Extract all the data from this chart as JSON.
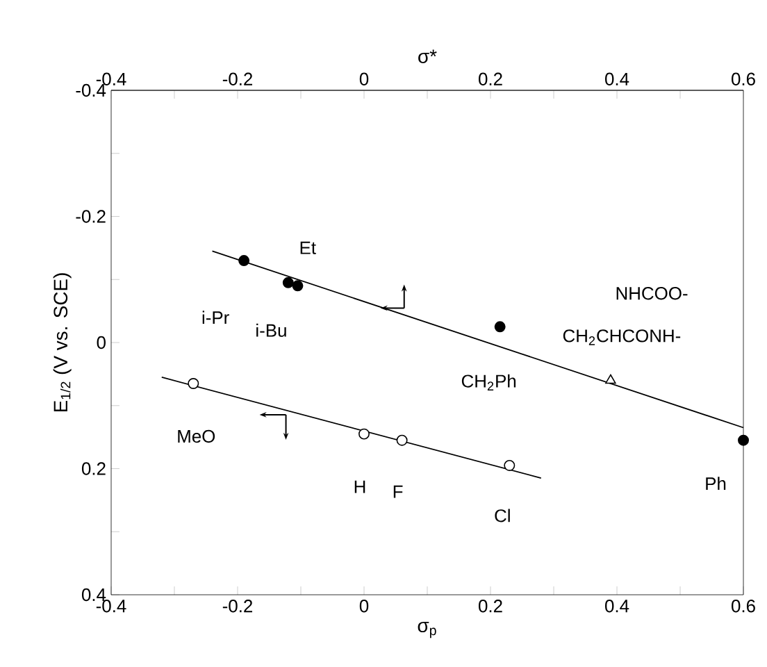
{
  "chart_data": {
    "type": "scatter",
    "xlabel": "σ$_{p}$",
    "x2label": "σ*",
    "ylabel": "E$_{1/2}$   (V vs. SCE)",
    "xlim": [
      -0.4,
      0.6
    ],
    "x2lim": [
      -0.4,
      0.6
    ],
    "ylim": [
      0.4,
      -0.4
    ],
    "xticks": [
      -0.4,
      {
        "value": -0.3,
        "label": null
      },
      -0.2,
      {
        "value": -0.1,
        "label": null
      },
      0,
      {
        "value": 0.1,
        "label": null
      },
      0.2,
      {
        "value": 0.3,
        "label": null
      },
      0.4,
      {
        "value": 0.5,
        "label": null
      },
      0.6
    ],
    "x2ticks": [
      -0.4,
      {
        "value": -0.3,
        "label": null
      },
      -0.2,
      {
        "value": -0.1,
        "label": null
      },
      0,
      {
        "value": 0.1,
        "label": null
      },
      0.2,
      {
        "value": 0.3,
        "label": null
      },
      0.4,
      {
        "value": 0.5,
        "label": null
      },
      0.6
    ],
    "yticks": [
      -0.4,
      {
        "value": -0.3,
        "label": null
      },
      -0.2,
      {
        "value": -0.1,
        "label": null
      },
      0,
      {
        "value": 0.1,
        "label": null
      },
      0.2,
      {
        "value": 0.3,
        "label": null
      },
      0.4
    ],
    "series": [
      {
        "axis": "x2",
        "marker": "circle",
        "color": "#000000",
        "x": [
          -0.19,
          -0.12,
          -0.105,
          0.215,
          0.6
        ],
        "values": [
          -0.13,
          -0.095,
          -0.09,
          -0.025,
          0.155
        ]
      },
      {
        "axis": "x2",
        "marker": "triangle",
        "color": "#ffffff",
        "x": [
          0.39
        ],
        "values": [
          0.06
        ]
      },
      {
        "marker": "circle",
        "color": "#ffffff",
        "x": [
          -0.27,
          0,
          0.06,
          0.23
        ],
        "values": [
          0.065,
          0.145,
          0.155,
          0.195
        ]
      },
      {
        "type": "line",
        "axis": "x2",
        "color": "#000000",
        "x": [
          -0.24,
          0.6
        ],
        "values": [
          -0.145,
          0.135
        ]
      },
      {
        "type": "line",
        "color": "#000000",
        "x": [
          -0.32,
          0.28
        ],
        "values": [
          0.055,
          0.215
        ]
      }
    ],
    "annotations": [
      "i-Pr",
      {
        "text": "Et",
        "x": -0.12,
        "y": -0.095
      },
      {
        "text": "i-Bu",
        "x": -0.105,
        "y": -0.09
      },
      {
        "text": "CH$_{2}$Ph",
        "x": 0.215,
        "y": -0.025
      },
      "NHCOO-",
      {
        "text": "CH$_{2}$CHCONH-",
        "x": 0.39,
        "y": 0.06
      },
      {
        "text": "Ph",
        "x": 0.6,
        "y": 0.155
      },
      {
        "text": "MeO",
        "x": -0.27,
        "y": 0.065
      },
      {
        "text": "H",
        "x": 0,
        "y": 0.145
      },
      {
        "text": "F",
        "x": 0.06,
        "y": 0.155
      },
      {
        "text": "Cl",
        "x": 0.23,
        "y": 0.195
      }
    ]
  }
}
